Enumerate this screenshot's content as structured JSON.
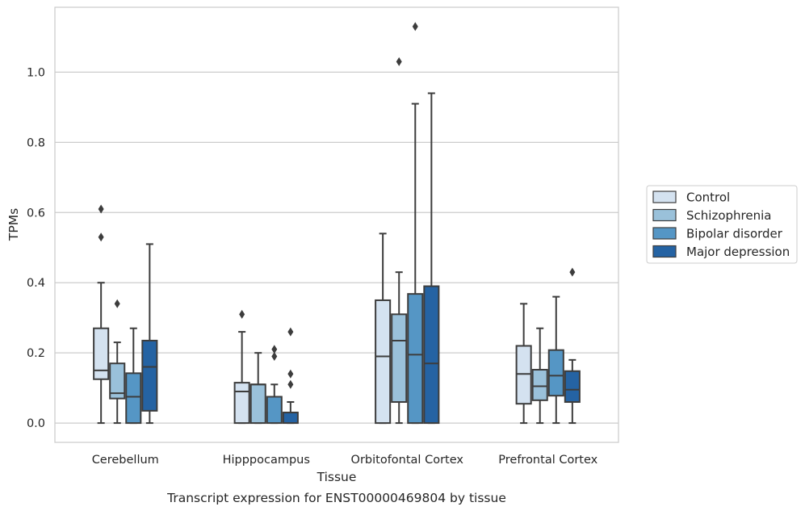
{
  "chart_data": {
    "type": "boxplot",
    "xlabel": "Tissue",
    "ylabel": "TPMs",
    "caption": "Transcript expression for ENST00000469804 by tissue",
    "categories": [
      "Cerebellum",
      "Hipppocampus",
      "Orbitofontal Cortex",
      "Prefrontal Cortex"
    ],
    "ylim": [
      -0.055,
      1.185
    ],
    "yticks": [
      0.0,
      0.2,
      0.4,
      0.6,
      0.8,
      1.0
    ],
    "ytick_labels": [
      "0.0",
      "0.2",
      "0.4",
      "0.6",
      "0.8",
      "1.0"
    ],
    "grid": true,
    "legend_position": "right, outside plot",
    "series": [
      {
        "name": "Control",
        "color": "#d4e2f0",
        "boxes": [
          {
            "whisker_low": 0.0,
            "q1": 0.125,
            "median": 0.15,
            "q3": 0.27,
            "whisker_high": 0.4,
            "outliers": [
              0.53,
              0.61
            ]
          },
          {
            "whisker_low": 0.0,
            "q1": 0.0,
            "median": 0.09,
            "q3": 0.115,
            "whisker_high": 0.26,
            "outliers": [
              0.31
            ]
          },
          {
            "whisker_low": 0.0,
            "q1": 0.0,
            "median": 0.19,
            "q3": 0.35,
            "whisker_high": 0.54,
            "outliers": []
          },
          {
            "whisker_low": 0.0,
            "q1": 0.055,
            "median": 0.14,
            "q3": 0.22,
            "whisker_high": 0.34,
            "outliers": []
          }
        ]
      },
      {
        "name": "Schizophrenia",
        "color": "#9ac1da",
        "boxes": [
          {
            "whisker_low": 0.0,
            "q1": 0.07,
            "median": 0.085,
            "q3": 0.17,
            "whisker_high": 0.23,
            "outliers": [
              0.34
            ]
          },
          {
            "whisker_low": 0.0,
            "q1": 0.0,
            "median": 0.11,
            "q3": 0.11,
            "whisker_high": 0.2,
            "outliers": []
          },
          {
            "whisker_low": 0.0,
            "q1": 0.06,
            "median": 0.235,
            "q3": 0.31,
            "whisker_high": 0.43,
            "outliers": [
              1.03
            ]
          },
          {
            "whisker_low": 0.0,
            "q1": 0.065,
            "median": 0.105,
            "q3": 0.152,
            "whisker_high": 0.27,
            "outliers": []
          }
        ]
      },
      {
        "name": "Bipolar disorder",
        "color": "#5596c5",
        "boxes": [
          {
            "whisker_low": 0.0,
            "q1": 0.0,
            "median": 0.075,
            "q3": 0.142,
            "whisker_high": 0.27,
            "outliers": []
          },
          {
            "whisker_low": 0.0,
            "q1": 0.0,
            "median": 0.075,
            "q3": 0.075,
            "whisker_high": 0.11,
            "outliers": [
              0.19,
              0.21
            ]
          },
          {
            "whisker_low": 0.0,
            "q1": 0.0,
            "median": 0.195,
            "q3": 0.368,
            "whisker_high": 0.91,
            "outliers": [
              1.13
            ]
          },
          {
            "whisker_low": 0.0,
            "q1": 0.078,
            "median": 0.135,
            "q3": 0.208,
            "whisker_high": 0.36,
            "outliers": []
          }
        ]
      },
      {
        "name": "Major depression",
        "color": "#2563a3",
        "boxes": [
          {
            "whisker_low": 0.0,
            "q1": 0.035,
            "median": 0.16,
            "q3": 0.235,
            "whisker_high": 0.51,
            "outliers": []
          },
          {
            "whisker_low": 0.0,
            "q1": 0.0,
            "median": 0.03,
            "q3": 0.03,
            "whisker_high": 0.06,
            "outliers": [
              0.11,
              0.14,
              0.26
            ]
          },
          {
            "whisker_low": 0.0,
            "q1": 0.0,
            "median": 0.17,
            "q3": 0.39,
            "whisker_high": 0.94,
            "outliers": []
          },
          {
            "whisker_low": 0.0,
            "q1": 0.06,
            "median": 0.095,
            "q3": 0.148,
            "whisker_high": 0.18,
            "outliers": [
              0.43
            ]
          }
        ]
      }
    ]
  },
  "colors": {
    "grid": "#cccccc",
    "frame": "#cccccc",
    "edge": "#3d3d3d",
    "text": "#262626"
  }
}
